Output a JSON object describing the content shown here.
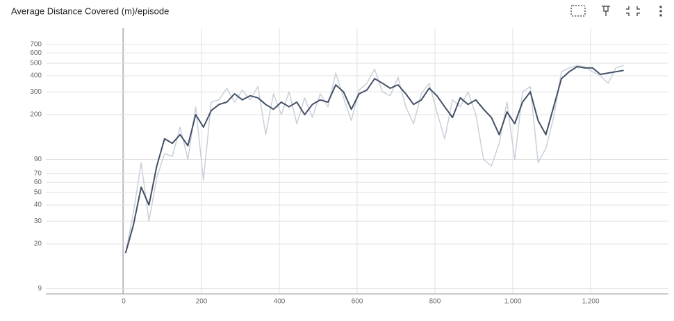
{
  "chart_data": {
    "type": "line",
    "title": "Average Distance Covered (m)/episode",
    "x": [
      5,
      25,
      45,
      65,
      85,
      105,
      125,
      145,
      165,
      185,
      205,
      225,
      245,
      265,
      285,
      305,
      325,
      345,
      365,
      385,
      405,
      425,
      445,
      465,
      485,
      505,
      525,
      545,
      565,
      585,
      605,
      625,
      645,
      665,
      685,
      705,
      725,
      745,
      765,
      785,
      805,
      825,
      845,
      865,
      885,
      905,
      925,
      945,
      965,
      985,
      1005,
      1025,
      1045,
      1065,
      1085,
      1105,
      1125,
      1145,
      1165,
      1185,
      1205,
      1225,
      1245,
      1265,
      1285
    ],
    "series": [
      {
        "color": "#c9d0da",
        "values": [
          17,
          35,
          85,
          30,
          65,
          100,
          95,
          160,
          90,
          230,
          62,
          250,
          260,
          320,
          250,
          310,
          260,
          330,
          140,
          290,
          200,
          300,
          170,
          270,
          190,
          290,
          230,
          420,
          270,
          180,
          310,
          350,
          450,
          300,
          280,
          390,
          230,
          170,
          290,
          350,
          210,
          130,
          260,
          230,
          300,
          200,
          90,
          80,
          120,
          250,
          90,
          300,
          330,
          85,
          110,
          190,
          430,
          460,
          480,
          470,
          430,
          400,
          350,
          460,
          480
        ]
      },
      {
        "color": "#425066",
        "values": [
          17,
          28,
          55,
          40,
          80,
          130,
          120,
          140,
          115,
          200,
          160,
          215,
          240,
          250,
          290,
          260,
          280,
          270,
          240,
          220,
          250,
          230,
          250,
          200,
          240,
          260,
          250,
          340,
          300,
          220,
          290,
          310,
          380,
          350,
          320,
          340,
          290,
          240,
          260,
          320,
          280,
          230,
          190,
          270,
          240,
          260,
          220,
          190,
          140,
          210,
          170,
          250,
          300,
          180,
          140,
          230,
          380,
          430,
          470,
          460,
          460,
          410,
          420,
          430,
          440
        ]
      }
    ],
    "xlim": [
      -200,
      1400
    ],
    "xticks": [
      0,
      200,
      400,
      600,
      800,
      {
        "value": 1000,
        "label": "1,000"
      },
      {
        "value": 1200,
        "label": "1,200"
      }
    ],
    "ylim": [
      8.2,
      940
    ],
    "yticks": [
      9,
      20,
      30,
      40,
      50,
      60,
      70,
      90,
      200,
      300,
      400,
      500,
      600,
      700
    ],
    "log_scale_y": true,
    "grid": true
  }
}
